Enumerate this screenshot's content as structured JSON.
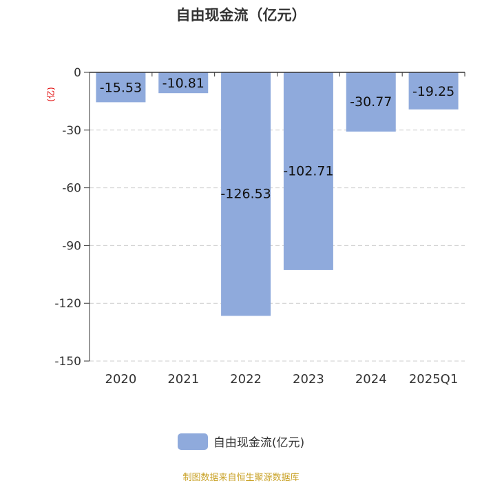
{
  "chart_data": {
    "type": "bar",
    "title": "自由现金流（亿元）",
    "unit_label": "(亿)",
    "categories": [
      "2020",
      "2021",
      "2022",
      "2023",
      "2024",
      "2025Q1"
    ],
    "series": [
      {
        "name": "自由现金流(亿元)",
        "values": [
          -15.53,
          -10.81,
          -126.53,
          -102.71,
          -30.77,
          -19.25
        ]
      }
    ],
    "data_labels": [
      "-15.53",
      "-10.81",
      "-126.53",
      "-102.71",
      "-30.77",
      "-19.25"
    ],
    "yticks": [
      "0",
      "-30",
      "-60",
      "-90",
      "-120",
      "-150"
    ],
    "ylim": [
      -150,
      0
    ],
    "grid": true,
    "legend_position": "bottom"
  },
  "colors": {
    "bar": "#8faadc",
    "axis": "#333333",
    "grid": "#cccccc",
    "unit": "#e00000",
    "source": "#c9a227"
  },
  "source_text": "制图数据来自恒生聚源数据库"
}
